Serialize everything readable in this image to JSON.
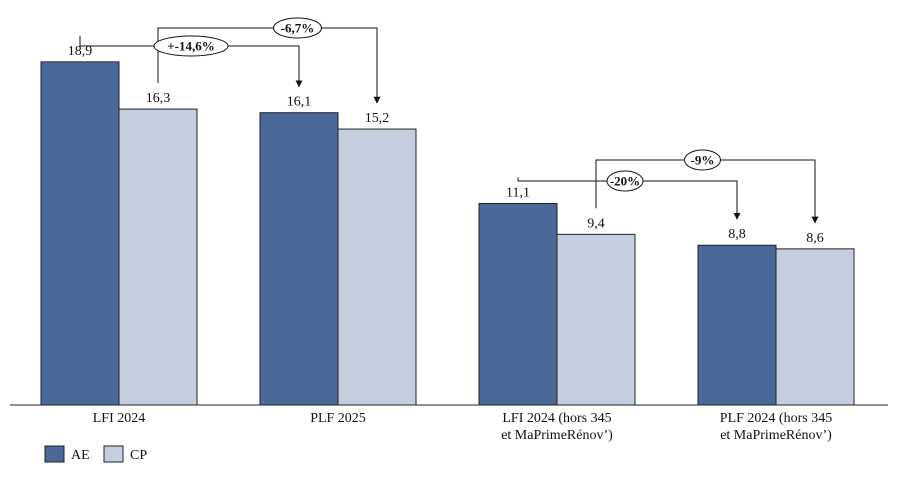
{
  "chart_data": {
    "type": "bar",
    "categories": [
      [
        "LFI 2024"
      ],
      [
        "PLF 2025"
      ],
      [
        "LFI 2024 (hors 345",
        "et MaPrimeRénov’)"
      ],
      [
        "PLF 2024 (hors 345",
        "et MaPrimeRénov’)"
      ]
    ],
    "series": [
      {
        "name": "AE",
        "values": [
          18.9,
          16.1,
          11.1,
          8.8
        ],
        "labels": [
          "18,9",
          "16,1",
          "11,1",
          "8,8"
        ],
        "color": "#4a6898"
      },
      {
        "name": "CP",
        "values": [
          16.3,
          15.2,
          9.4,
          8.6
        ],
        "labels": [
          "16,3",
          "15,2",
          "9,4",
          "8,6"
        ],
        "color": "#c5cedf"
      }
    ],
    "ylim": [
      0,
      20
    ],
    "legend": "bottom-left",
    "annotations": [
      {
        "text": "+-14,6%",
        "from": {
          "category": 0,
          "series": 0
        },
        "to": {
          "category": 1,
          "series": 0
        }
      },
      {
        "text": "-6,7%",
        "from": {
          "category": 0,
          "series": 1
        },
        "to": {
          "category": 1,
          "series": 1
        }
      },
      {
        "text": "-20%",
        "from": {
          "category": 2,
          "series": 0
        },
        "to": {
          "category": 3,
          "series": 0
        }
      },
      {
        "text": "-9%",
        "from": {
          "category": 2,
          "series": 1
        },
        "to": {
          "category": 3,
          "series": 1
        }
      }
    ]
  }
}
